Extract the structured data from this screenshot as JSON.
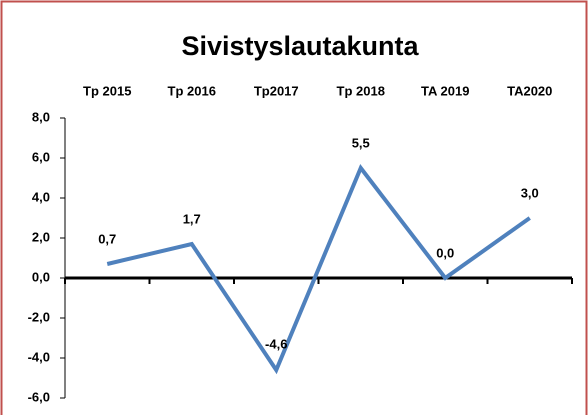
{
  "chart_data": {
    "type": "line",
    "title": "Sivistyslautakunta",
    "categories": [
      "Tp 2015",
      "Tp 2016",
      "Tp2017",
      "Tp 2018",
      "TA 2019",
      "TA2020"
    ],
    "series": [
      {
        "name": "Sivistyslautakunta",
        "color": "#4f81bd",
        "values": [
          0.7,
          1.7,
          -4.6,
          5.5,
          0.0,
          3.0
        ],
        "value_labels": [
          "0,7",
          "1,7",
          "-4,6",
          "5,5",
          "0,0",
          "3,0"
        ]
      }
    ],
    "ylim": [
      -6,
      8
    ],
    "yticks": [
      {
        "value": -6,
        "label": "-6,0"
      },
      {
        "value": -4,
        "label": "-4,0"
      },
      {
        "value": -2,
        "label": "-2,0"
      },
      {
        "value": 0,
        "label": "0,0"
      },
      {
        "value": 2,
        "label": "2,0"
      },
      {
        "value": 4,
        "label": "4,0"
      },
      {
        "value": 6,
        "label": "6,0"
      },
      {
        "value": 8,
        "label": "8,0"
      }
    ]
  }
}
